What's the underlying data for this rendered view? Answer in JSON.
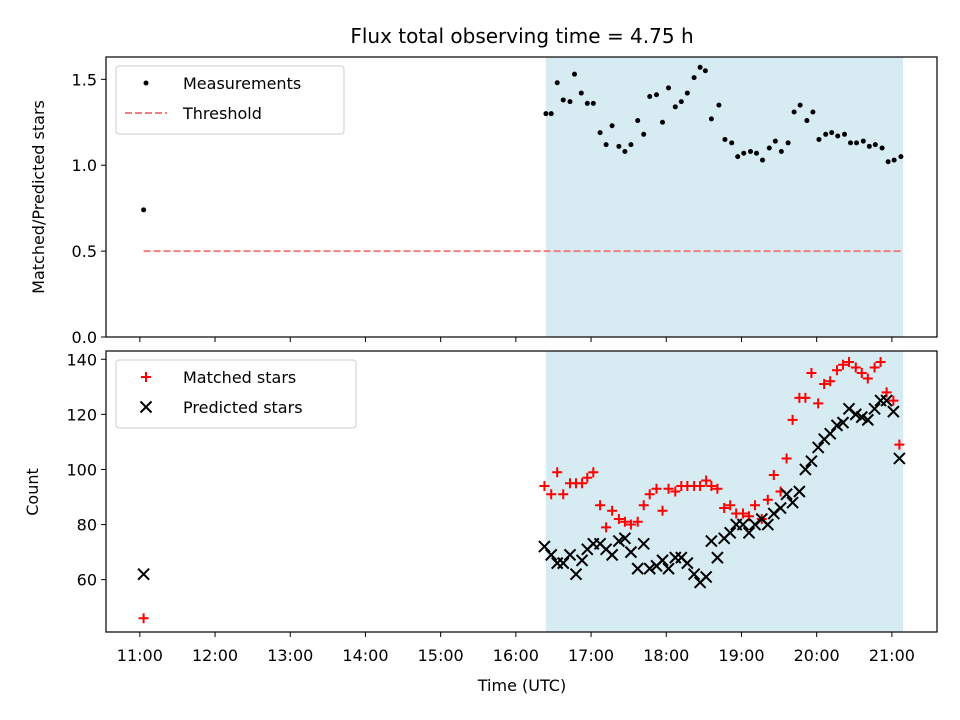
{
  "figure": {
    "title": "Flux total observing time = 4.75 h"
  },
  "x_axis": {
    "label": "Time (UTC)",
    "ticks": [
      {
        "label": "11:00",
        "hour": 11
      },
      {
        "label": "12:00",
        "hour": 12
      },
      {
        "label": "13:00",
        "hour": 13
      },
      {
        "label": "14:00",
        "hour": 14
      },
      {
        "label": "15:00",
        "hour": 15
      },
      {
        "label": "16:00",
        "hour": 16
      },
      {
        "label": "17:00",
        "hour": 17
      },
      {
        "label": "18:00",
        "hour": 18
      },
      {
        "label": "19:00",
        "hour": 19
      },
      {
        "label": "20:00",
        "hour": 20
      },
      {
        "label": "21:00",
        "hour": 21
      }
    ]
  },
  "chart_data": [
    {
      "type": "scatter",
      "title": "Flux total observing time = 4.75 h",
      "xlabel": "",
      "ylabel": "Matched/Predicted stars",
      "xlim_hours": [
        10.55,
        21.6
      ],
      "ylim": [
        0,
        1.63
      ],
      "yticks": [
        {
          "label": "0.0",
          "value": 0
        },
        {
          "label": "0.5",
          "value": 0.5
        },
        {
          "label": "1.0",
          "value": 1.0
        },
        {
          "label": "1.5",
          "value": 1.5
        }
      ],
      "grid": false,
      "legend_position": "upper left",
      "shaded_span_hours": [
        16.4,
        21.15
      ],
      "shaded_color": "#add8e6",
      "series": [
        {
          "name": "Measurements",
          "kind": "points",
          "color": "#000000",
          "points": [
            [
              11.05,
              0.74
            ],
            [
              16.4,
              1.3
            ],
            [
              16.47,
              1.3
            ],
            [
              16.55,
              1.48
            ],
            [
              16.63,
              1.38
            ],
            [
              16.72,
              1.37
            ],
            [
              16.78,
              1.53
            ],
            [
              16.87,
              1.42
            ],
            [
              16.95,
              1.36
            ],
            [
              17.03,
              1.36
            ],
            [
              17.12,
              1.19
            ],
            [
              17.2,
              1.12
            ],
            [
              17.28,
              1.23
            ],
            [
              17.37,
              1.11
            ],
            [
              17.45,
              1.08
            ],
            [
              17.53,
              1.12
            ],
            [
              17.62,
              1.26
            ],
            [
              17.7,
              1.18
            ],
            [
              17.78,
              1.4
            ],
            [
              17.87,
              1.41
            ],
            [
              17.95,
              1.25
            ],
            [
              18.03,
              1.45
            ],
            [
              18.12,
              1.34
            ],
            [
              18.2,
              1.37
            ],
            [
              18.28,
              1.42
            ],
            [
              18.37,
              1.51
            ],
            [
              18.45,
              1.57
            ],
            [
              18.52,
              1.55
            ],
            [
              18.6,
              1.27
            ],
            [
              18.7,
              1.35
            ],
            [
              18.78,
              1.15
            ],
            [
              18.87,
              1.13
            ],
            [
              18.95,
              1.05
            ],
            [
              19.03,
              1.07
            ],
            [
              19.12,
              1.08
            ],
            [
              19.2,
              1.07
            ],
            [
              19.28,
              1.03
            ],
            [
              19.37,
              1.1
            ],
            [
              19.45,
              1.14
            ],
            [
              19.53,
              1.08
            ],
            [
              19.62,
              1.13
            ],
            [
              19.7,
              1.31
            ],
            [
              19.78,
              1.35
            ],
            [
              19.87,
              1.26
            ],
            [
              19.95,
              1.31
            ],
            [
              20.03,
              1.15
            ],
            [
              20.12,
              1.18
            ],
            [
              20.2,
              1.19
            ],
            [
              20.28,
              1.17
            ],
            [
              20.37,
              1.18
            ],
            [
              20.45,
              1.13
            ],
            [
              20.53,
              1.13
            ],
            [
              20.62,
              1.14
            ],
            [
              20.7,
              1.11
            ],
            [
              20.78,
              1.12
            ],
            [
              20.87,
              1.1
            ],
            [
              20.95,
              1.02
            ],
            [
              21.03,
              1.03
            ],
            [
              21.12,
              1.05
            ]
          ]
        },
        {
          "name": "Threshold",
          "kind": "dashed-line",
          "color": "#f08080",
          "x": [
            11.05,
            21.15
          ],
          "y": [
            0.5,
            0.5
          ]
        }
      ]
    },
    {
      "type": "scatter",
      "title": "",
      "xlabel": "Time (UTC)",
      "ylabel": "Count",
      "xlim_hours": [
        10.55,
        21.6
      ],
      "ylim": [
        41,
        143
      ],
      "yticks": [
        {
          "label": "60",
          "value": 60
        },
        {
          "label": "80",
          "value": 80
        },
        {
          "label": "100",
          "value": 100
        },
        {
          "label": "120",
          "value": 120
        },
        {
          "label": "140",
          "value": 140
        }
      ],
      "grid": false,
      "legend_position": "upper left",
      "shaded_span_hours": [
        16.4,
        21.15
      ],
      "shaded_color": "#add8e6",
      "series": [
        {
          "name": "Matched stars",
          "kind": "plus",
          "color": "#ff0000",
          "points": [
            [
              11.05,
              46
            ],
            [
              16.38,
              94
            ],
            [
              16.47,
              91
            ],
            [
              16.55,
              99
            ],
            [
              16.63,
              91
            ],
            [
              16.72,
              95
            ],
            [
              16.8,
              95
            ],
            [
              16.88,
              95
            ],
            [
              16.95,
              97
            ],
            [
              17.03,
              99
            ],
            [
              17.12,
              87
            ],
            [
              17.2,
              79
            ],
            [
              17.28,
              85
            ],
            [
              17.37,
              82
            ],
            [
              17.45,
              81
            ],
            [
              17.53,
              80
            ],
            [
              17.62,
              81
            ],
            [
              17.7,
              87
            ],
            [
              17.78,
              91
            ],
            [
              17.87,
              93
            ],
            [
              17.95,
              85
            ],
            [
              18.03,
              93
            ],
            [
              18.12,
              92
            ],
            [
              18.2,
              94
            ],
            [
              18.28,
              94
            ],
            [
              18.37,
              94
            ],
            [
              18.45,
              94
            ],
            [
              18.53,
              96
            ],
            [
              18.6,
              94
            ],
            [
              18.68,
              93
            ],
            [
              18.77,
              86
            ],
            [
              18.85,
              87
            ],
            [
              18.93,
              84
            ],
            [
              19.02,
              84
            ],
            [
              19.1,
              83
            ],
            [
              19.18,
              87
            ],
            [
              19.27,
              82
            ],
            [
              19.35,
              89
            ],
            [
              19.43,
              98
            ],
            [
              19.52,
              92
            ],
            [
              19.6,
              104
            ],
            [
              19.68,
              118
            ],
            [
              19.77,
              126
            ],
            [
              19.85,
              126
            ],
            [
              19.93,
              135
            ],
            [
              20.02,
              124
            ],
            [
              20.1,
              131
            ],
            [
              20.18,
              132
            ],
            [
              20.27,
              136
            ],
            [
              20.35,
              138
            ],
            [
              20.43,
              139
            ],
            [
              20.52,
              137
            ],
            [
              20.6,
              135
            ],
            [
              20.68,
              133
            ],
            [
              20.77,
              137
            ],
            [
              20.85,
              139
            ],
            [
              20.93,
              128
            ],
            [
              21.02,
              125
            ],
            [
              21.1,
              109
            ]
          ]
        },
        {
          "name": "Predicted stars",
          "kind": "x",
          "color": "#000000",
          "points": [
            [
              11.05,
              62
            ],
            [
              16.38,
              72
            ],
            [
              16.47,
              69
            ],
            [
              16.55,
              66
            ],
            [
              16.63,
              66
            ],
            [
              16.72,
              69
            ],
            [
              16.8,
              62
            ],
            [
              16.88,
              67
            ],
            [
              16.95,
              71
            ],
            [
              17.03,
              73
            ],
            [
              17.12,
              73
            ],
            [
              17.2,
              71
            ],
            [
              17.28,
              69
            ],
            [
              17.37,
              74
            ],
            [
              17.45,
              75
            ],
            [
              17.53,
              70
            ],
            [
              17.62,
              64
            ],
            [
              17.7,
              73
            ],
            [
              17.78,
              64
            ],
            [
              17.87,
              65
            ],
            [
              17.95,
              67
            ],
            [
              18.03,
              64
            ],
            [
              18.12,
              68
            ],
            [
              18.2,
              68
            ],
            [
              18.28,
              66
            ],
            [
              18.37,
              62
            ],
            [
              18.45,
              59
            ],
            [
              18.53,
              61
            ],
            [
              18.6,
              74
            ],
            [
              18.68,
              68
            ],
            [
              18.77,
              75
            ],
            [
              18.85,
              77
            ],
            [
              18.93,
              80
            ],
            [
              19.02,
              80
            ],
            [
              19.1,
              77
            ],
            [
              19.18,
              80
            ],
            [
              19.27,
              82
            ],
            [
              19.35,
              80
            ],
            [
              19.43,
              84
            ],
            [
              19.52,
              86
            ],
            [
              19.6,
              91
            ],
            [
              19.68,
              88
            ],
            [
              19.77,
              92
            ],
            [
              19.85,
              100
            ],
            [
              19.93,
              103
            ],
            [
              20.02,
              108
            ],
            [
              20.1,
              111
            ],
            [
              20.18,
              113
            ],
            [
              20.27,
              116
            ],
            [
              20.35,
              117
            ],
            [
              20.43,
              122
            ],
            [
              20.52,
              120
            ],
            [
              20.6,
              119
            ],
            [
              20.68,
              118
            ],
            [
              20.77,
              122
            ],
            [
              20.85,
              125
            ],
            [
              20.93,
              125
            ],
            [
              21.02,
              121
            ],
            [
              21.1,
              104
            ]
          ]
        }
      ]
    }
  ]
}
